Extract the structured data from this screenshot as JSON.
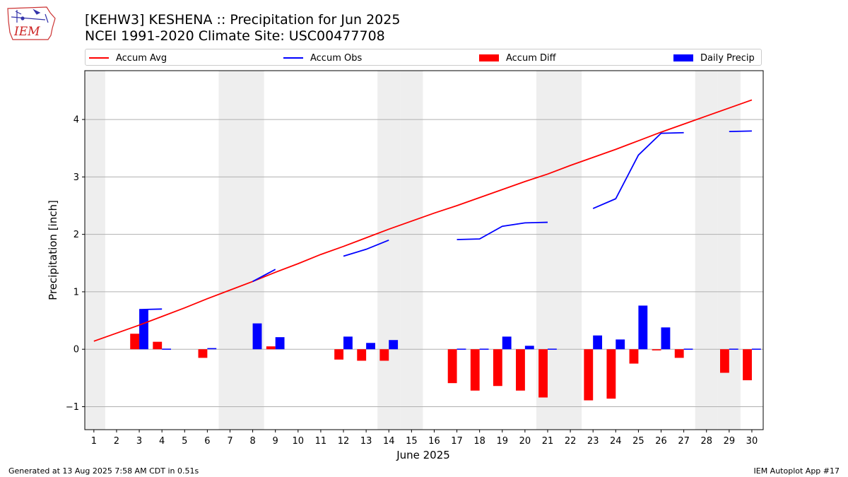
{
  "header": {
    "title_line1": "[KEHW3] KESHENA :: Precipitation for Jun 2025",
    "title_line2": "NCEI 1991-2020 Climate Site: USC00477708"
  },
  "logo": {
    "text": "IEM",
    "icon": "iem-iowa-logo"
  },
  "footer": {
    "left": "Generated at 13 Aug 2025 7:58 AM CDT in 0.51s",
    "right": "IEM Autoplot App #17"
  },
  "colors": {
    "avg": "#ff0000",
    "obs": "#0000ff",
    "diff": "#ff0000",
    "daily": "#0000ff",
    "weekend": "#eeeeee",
    "grid": "#b0b0b0"
  },
  "chart_data": {
    "type": "bar",
    "title": "[KEHW3] KESHENA :: Precipitation for Jun 2025",
    "subtitle": "NCEI 1991-2020 Climate Site: USC00477708",
    "xlabel": "June 2025",
    "ylabel": "Precipitation [inch]",
    "ylim": [
      -1.4,
      4.85
    ],
    "yticks": [
      -1,
      0,
      1,
      2,
      3,
      4
    ],
    "ytick_labels": [
      "−1",
      "0",
      "1",
      "2",
      "3",
      "4"
    ],
    "x": [
      1,
      2,
      3,
      4,
      5,
      6,
      7,
      8,
      9,
      10,
      11,
      12,
      13,
      14,
      15,
      16,
      17,
      18,
      19,
      20,
      21,
      22,
      23,
      24,
      25,
      26,
      27,
      28,
      29,
      30
    ],
    "x_tick_labels": [
      "1",
      "2",
      "3",
      "4",
      "5",
      "6",
      "7",
      "8",
      "9",
      "10",
      "11",
      "12",
      "13",
      "14",
      "15",
      "16",
      "17",
      "18",
      "19",
      "20",
      "21",
      "22",
      "23",
      "24",
      "25",
      "26",
      "27",
      "28",
      "29",
      "30"
    ],
    "weekend_days": [
      1,
      7,
      8,
      14,
      15,
      21,
      22,
      28,
      29
    ],
    "grid": "horizontal",
    "legend_position": "top",
    "legend": [
      "Accum Avg",
      "Accum Obs",
      "Accum Diff",
      "Daily Precip"
    ],
    "series": [
      {
        "name": "Accum Avg",
        "kind": "line",
        "values": [
          0.14,
          0.28,
          0.42,
          0.57,
          0.72,
          0.88,
          1.03,
          1.18,
          1.34,
          1.49,
          1.65,
          1.79,
          1.94,
          2.09,
          2.23,
          2.37,
          2.5,
          2.64,
          2.78,
          2.92,
          3.05,
          3.2,
          3.34,
          3.48,
          3.63,
          3.78,
          3.92,
          4.06,
          4.2,
          4.34
        ]
      },
      {
        "name": "Accum Obs",
        "kind": "line",
        "values": [
          null,
          null,
          0.69,
          0.7,
          null,
          null,
          null,
          1.18,
          1.39,
          null,
          null,
          1.62,
          1.74,
          1.9,
          null,
          null,
          1.91,
          1.92,
          2.14,
          2.2,
          2.21,
          null,
          2.45,
          2.62,
          3.38,
          3.76,
          3.77,
          null,
          3.79,
          3.8
        ]
      },
      {
        "name": "Accum Diff",
        "kind": "bar",
        "values": [
          0,
          0,
          0.27,
          0.13,
          0,
          -0.15,
          0,
          0,
          0.05,
          0,
          0,
          -0.18,
          -0.2,
          -0.2,
          0,
          0,
          -0.59,
          -0.72,
          -0.64,
          -0.72,
          -0.84,
          0,
          -0.89,
          -0.86,
          -0.25,
          -0.02,
          -0.15,
          0,
          -0.41,
          -0.54
        ]
      },
      {
        "name": "Daily Precip",
        "kind": "bar",
        "values": [
          0,
          0,
          0.69,
          0.01,
          0,
          0.02,
          0,
          0.45,
          0.21,
          0,
          0,
          0.22,
          0.11,
          0.16,
          0,
          0,
          0.01,
          0.01,
          0.22,
          0.06,
          0.01,
          0,
          0.24,
          0.17,
          0.76,
          0.38,
          0.01,
          0,
          0.01,
          0.01
        ]
      }
    ]
  }
}
